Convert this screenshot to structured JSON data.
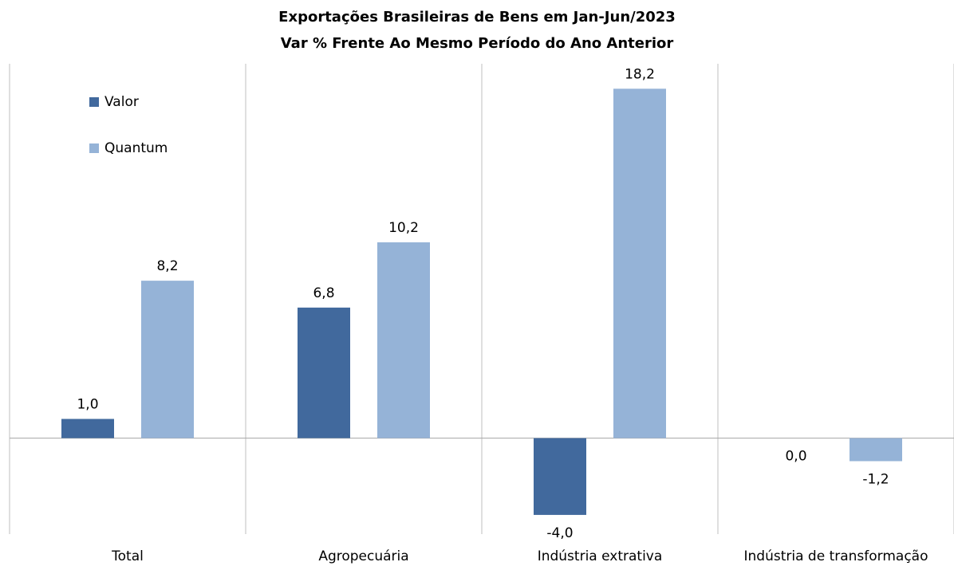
{
  "chart_data": {
    "type": "bar",
    "title": [
      "Exportações Brasileiras de Bens em Jan-Jun/2023",
      "Var % Frente Ao Mesmo Período do Ano Anterior"
    ],
    "categories": [
      "Total",
      "Agropecuária",
      "Indústria extrativa",
      "Indústria de transformação"
    ],
    "series": [
      {
        "name": "Valor",
        "color": "#41699d",
        "values": [
          1.0,
          6.8,
          -4.0,
          0.0
        ],
        "value_labels": [
          "1,0",
          "6,8",
          "-4,0",
          "0,0"
        ]
      },
      {
        "name": "Quantum",
        "color": "#95b3d7",
        "values": [
          8.2,
          10.2,
          18.2,
          -1.2
        ],
        "value_labels": [
          "8,2",
          "10,2",
          "18,2",
          "-1,2"
        ]
      }
    ],
    "ylim": [
      -5,
      19.5
    ],
    "legend": "upper left"
  }
}
